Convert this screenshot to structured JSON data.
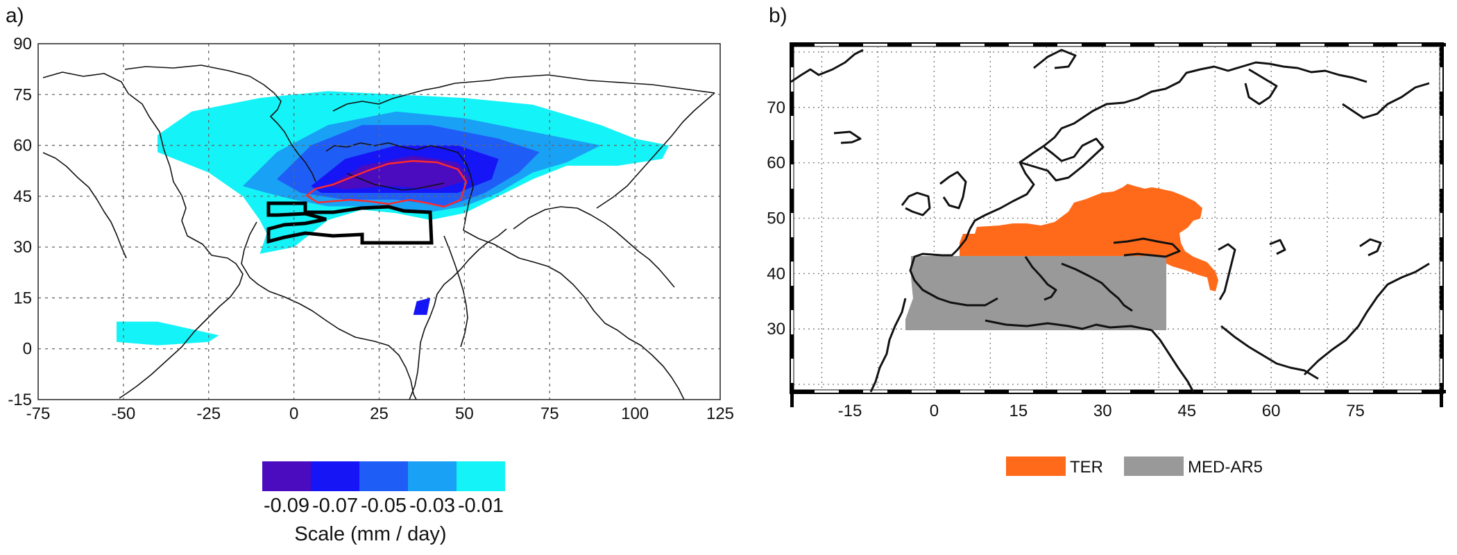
{
  "panel_a": {
    "label": "a)",
    "x_ticks": [
      "-75",
      "-50",
      "-25",
      "0",
      "25",
      "50",
      "75",
      "100",
      "125"
    ],
    "y_ticks": [
      "90",
      "75",
      "60",
      "45",
      "30",
      "15",
      "0",
      "-15"
    ],
    "colorbar": {
      "colors": [
        "#4b0bbf",
        "#1515f5",
        "#1f5df7",
        "#19a1f5",
        "#14f3f7"
      ],
      "tick_labels": [
        "-0.09",
        "-0.07",
        "-0.05",
        "-0.03",
        "-0.01"
      ],
      "title": "Scale (mm / day)"
    },
    "chart_data": {
      "type": "heatmap",
      "xlim": [
        -75,
        125
      ],
      "ylim": [
        -15,
        90
      ],
      "units": "mm / day",
      "levels": [
        -0.09,
        -0.07,
        -0.05,
        -0.03,
        -0.01
      ],
      "grid": true
    }
  },
  "panel_b": {
    "label": "b)",
    "x_ticks": [
      "-15",
      "0",
      "15",
      "30",
      "45",
      "60",
      "75"
    ],
    "y_ticks": [
      "70",
      "60",
      "50",
      "40",
      "30"
    ],
    "legend": [
      {
        "name": "TER",
        "color": "#ff6a1a"
      },
      {
        "name": "MED-AR5",
        "color": "#999999"
      }
    ],
    "chart_data": {
      "type": "heatmap",
      "xlim": [
        -25,
        90
      ],
      "ylim": [
        19,
        81
      ],
      "grid": true,
      "legend_position": "bottom"
    }
  }
}
